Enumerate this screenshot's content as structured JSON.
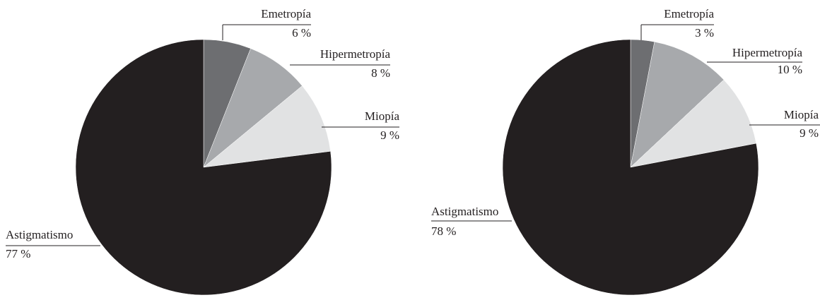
{
  "chart_data": [
    {
      "type": "pie",
      "categories": [
        "Emetropía",
        "Hipermetropía",
        "Miopía",
        "Astigmatismo"
      ],
      "values": [
        6,
        8,
        9,
        77
      ],
      "value_labels": [
        "6 %",
        "8 %",
        "9 %",
        "77 %"
      ],
      "colors": [
        "#6d6e71",
        "#a7a9ac",
        "#e1e2e3",
        "#231f20"
      ]
    },
    {
      "type": "pie",
      "categories": [
        "Emetropía",
        "Hipermetropía",
        "Miopía",
        "Astigmatismo"
      ],
      "values": [
        3,
        10,
        9,
        78
      ],
      "value_labels": [
        "3 %",
        "10 %",
        "9 %",
        "78 %"
      ],
      "colors": [
        "#6d6e71",
        "#a7a9ac",
        "#e1e2e3",
        "#231f20"
      ]
    }
  ]
}
